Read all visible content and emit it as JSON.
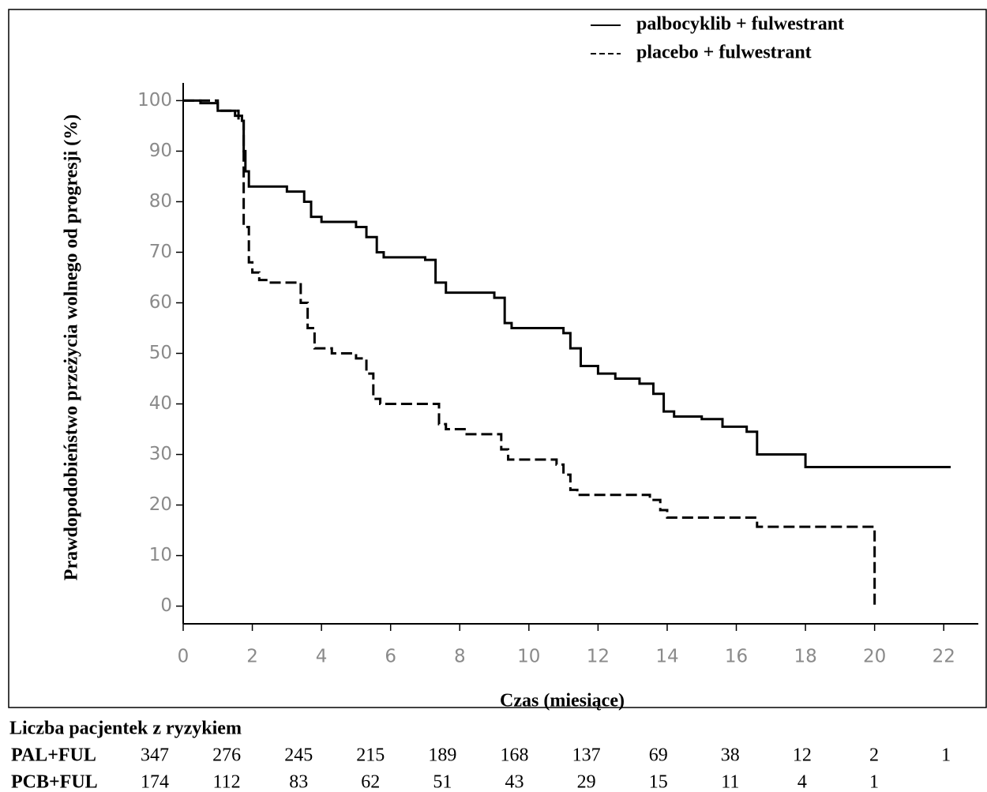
{
  "chart_data": {
    "type": "line",
    "step": true,
    "y_label": "Prawdopodobieństwo przeżycia wolnego od progresji (%)",
    "x_label": "Czas (miesiące)",
    "xlim": [
      0,
      23
    ],
    "ylim": [
      -3.5,
      103.5
    ],
    "xticks": [
      0,
      2,
      4,
      6,
      8,
      10,
      12,
      14,
      16,
      18,
      20,
      22
    ],
    "yticks": [
      0,
      10,
      20,
      30,
      40,
      50,
      60,
      70,
      80,
      90,
      100
    ],
    "legend": "top-right",
    "series": [
      {
        "name": "palbocyklib + fulwestrant",
        "color": "#000000",
        "line_style": "solid",
        "x": [
          0,
          0.5,
          1,
          1.5,
          1.7,
          1.75,
          1.8,
          1.9,
          3,
          3.5,
          3.7,
          4,
          5,
          5.3,
          5.6,
          5.8,
          7,
          7.3,
          7.6,
          9,
          9.3,
          9.5,
          11,
          11.2,
          11.5,
          12,
          12.5,
          13.2,
          13.6,
          13.9,
          14.2,
          15,
          15.6,
          16.3,
          16.6,
          18,
          22.2
        ],
        "values": [
          100,
          99.5,
          98,
          97,
          96,
          90,
          86,
          83,
          82,
          80,
          77,
          76,
          75,
          73,
          70,
          69,
          68.5,
          64,
          62,
          61,
          56,
          55,
          54,
          51,
          47.5,
          46,
          45,
          44,
          42,
          38.5,
          37.5,
          37,
          35.5,
          34.5,
          30,
          27.5,
          27.5
        ]
      },
      {
        "name": "placebo + fulwestrant",
        "color": "#000000",
        "line_style": "dashed",
        "x": [
          0,
          1,
          1.6,
          1.75,
          1.9,
          2,
          2.2,
          2.5,
          3.2,
          3.4,
          3.6,
          3.8,
          4.3,
          5,
          5.3,
          5.5,
          5.7,
          7.2,
          7.4,
          7.6,
          8.2,
          9.2,
          9.4,
          10.8,
          11,
          11.2,
          11.4,
          13.5,
          13.8,
          14,
          16.5,
          16.6,
          20,
          20
        ],
        "values": [
          100,
          98,
          96,
          75,
          68,
          66,
          64.5,
          64,
          64,
          60,
          55,
          51,
          50,
          49,
          46,
          41,
          40,
          40,
          36,
          35,
          34,
          31,
          29,
          28,
          26,
          23,
          22,
          21,
          19,
          17.5,
          17.5,
          15.7,
          15.5,
          0
        ]
      }
    ]
  },
  "risk_table": {
    "title": "Liczba pacjentek z ryzykiem",
    "rows": [
      {
        "label": "PAL+FUL",
        "values": [
          347,
          276,
          245,
          215,
          189,
          168,
          137,
          69,
          38,
          12,
          2,
          1
        ]
      },
      {
        "label": "PCB+FUL",
        "values": [
          174,
          112,
          83,
          62,
          51,
          43,
          29,
          15,
          11,
          4,
          1,
          null
        ]
      }
    ]
  }
}
